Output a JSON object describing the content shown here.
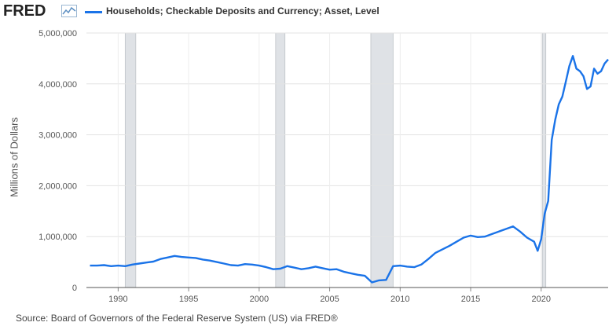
{
  "header": {
    "logo_text": "FRED",
    "legend_label": "Households; Checkable Deposits and Currency; Asset, Level",
    "series_color": "#1a73e8"
  },
  "source_text": "Source: Board of Governors of the Federal Reserve System (US) via FRED®",
  "chart_data": {
    "type": "line",
    "title": "",
    "xlabel": "",
    "ylabel": "Millions of Dollars",
    "xlim": [
      1987.75,
      2024.75
    ],
    "ylim": [
      0,
      5000000
    ],
    "y_ticks": [
      0,
      1000000,
      2000000,
      3000000,
      4000000,
      5000000
    ],
    "y_tick_labels": [
      "0",
      "1,000,000",
      "2,000,000",
      "3,000,000",
      "4,000,000",
      "5,000,000"
    ],
    "x_ticks": [
      1990,
      1995,
      2000,
      2005,
      2010,
      2015,
      2020
    ],
    "x_tick_labels": [
      "1990",
      "1995",
      "2000",
      "2005",
      "2010",
      "2015",
      "2020"
    ],
    "grid": true,
    "legend_placement": "top",
    "recessions": [
      [
        1990.5,
        1991.25
      ],
      [
        2001.17,
        2001.83
      ],
      [
        2007.92,
        2009.5
      ],
      [
        2020.08,
        2020.33
      ]
    ],
    "series": [
      {
        "name": "Households; Checkable Deposits and Currency; Asset, Level",
        "x": [
          1988.0,
          1988.5,
          1989.0,
          1989.5,
          1990.0,
          1990.5,
          1991.0,
          1991.5,
          1992.0,
          1992.5,
          1993.0,
          1993.5,
          1994.0,
          1994.5,
          1995.0,
          1995.5,
          1996.0,
          1996.5,
          1997.0,
          1997.5,
          1998.0,
          1998.5,
          1999.0,
          1999.5,
          2000.0,
          2000.5,
          2001.0,
          2001.5,
          2002.0,
          2002.5,
          2003.0,
          2003.5,
          2004.0,
          2004.5,
          2005.0,
          2005.5,
          2006.0,
          2006.5,
          2007.0,
          2007.5,
          2008.0,
          2008.5,
          2009.0,
          2009.5,
          2010.0,
          2010.5,
          2011.0,
          2011.5,
          2012.0,
          2012.5,
          2013.0,
          2013.5,
          2014.0,
          2014.5,
          2015.0,
          2015.5,
          2016.0,
          2016.5,
          2017.0,
          2017.5,
          2018.0,
          2018.5,
          2019.0,
          2019.5,
          2019.75,
          2020.0,
          2020.25,
          2020.5,
          2020.75,
          2021.0,
          2021.25,
          2021.5,
          2021.75,
          2022.0,
          2022.25,
          2022.5,
          2022.75,
          2023.0,
          2023.25,
          2023.5,
          2023.75,
          2024.0,
          2024.25,
          2024.5,
          2024.75
        ],
        "values": [
          430000,
          430000,
          440000,
          420000,
          430000,
          420000,
          450000,
          470000,
          490000,
          510000,
          560000,
          590000,
          620000,
          600000,
          590000,
          580000,
          550000,
          530000,
          500000,
          470000,
          440000,
          430000,
          460000,
          450000,
          430000,
          400000,
          360000,
          370000,
          420000,
          390000,
          360000,
          380000,
          410000,
          380000,
          350000,
          360000,
          310000,
          280000,
          250000,
          230000,
          100000,
          140000,
          150000,
          420000,
          430000,
          410000,
          400000,
          450000,
          560000,
          680000,
          750000,
          820000,
          900000,
          980000,
          1020000,
          990000,
          1000000,
          1050000,
          1100000,
          1150000,
          1200000,
          1100000,
          980000,
          900000,
          720000,
          950000,
          1450000,
          1700000,
          2900000,
          3300000,
          3600000,
          3750000,
          4050000,
          4350000,
          4550000,
          4300000,
          4250000,
          4150000,
          3900000,
          3950000,
          4300000,
          4200000,
          4250000,
          4400000,
          4480000
        ]
      }
    ]
  }
}
